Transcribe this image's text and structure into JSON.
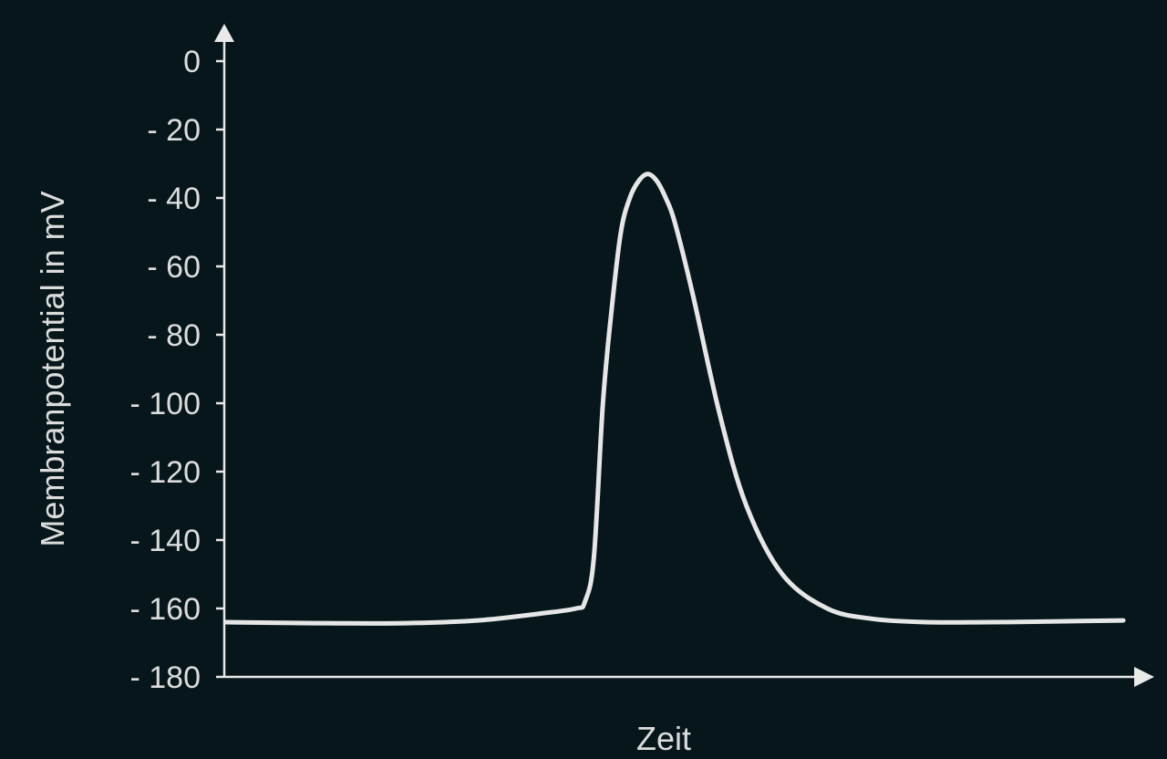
{
  "chart_data": {
    "type": "line",
    "title": "",
    "xlabel": "Zeit",
    "ylabel": "Membranpotential in mV",
    "ylim": [
      -180,
      0
    ],
    "yticks": [
      0,
      -20,
      -40,
      -60,
      -80,
      -100,
      -120,
      -140,
      -160,
      -180
    ],
    "ytick_labels": [
      "0",
      "- 20",
      "- 40",
      "- 60",
      "- 80",
      "- 100",
      "- 120",
      "- 140",
      "- 160",
      "- 180"
    ],
    "xlim": [
      0,
      100
    ],
    "grid": false,
    "legend": "none",
    "line_color": "#e6e6e6",
    "series": [
      {
        "x": [
          0,
          10,
          20,
          28,
          35,
          39,
          40,
          41,
          42,
          43,
          44,
          45,
          46,
          47,
          48,
          49,
          50,
          52,
          55,
          58,
          62,
          67,
          72,
          78,
          85,
          92,
          100
        ],
        "values": [
          -164,
          -164.3,
          -164.3,
          -163.5,
          -161.5,
          -160,
          -158,
          -145,
          -100,
          -72,
          -50,
          -40,
          -35,
          -33,
          -35,
          -40,
          -47,
          -68,
          -103,
          -130,
          -150,
          -160,
          -163,
          -164,
          -164,
          -163.8,
          -163.5
        ]
      }
    ]
  }
}
